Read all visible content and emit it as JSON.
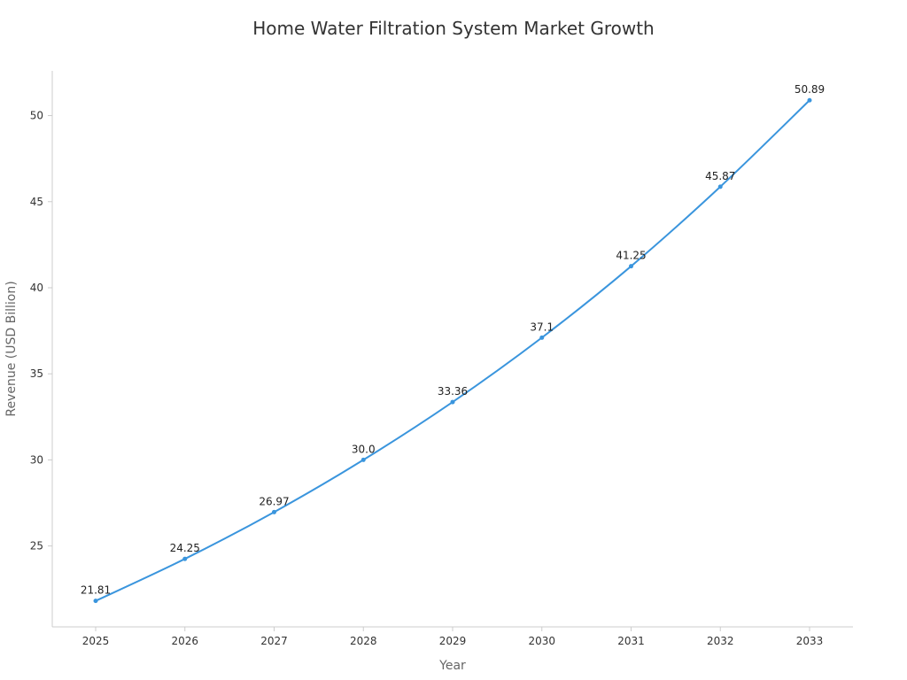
{
  "chart_data": {
    "type": "line",
    "title": "Home Water Filtration System Market Growth",
    "xlabel": "Year",
    "ylabel": "Revenue (USD Billion)",
    "x": [
      "2025",
      "2026",
      "2027",
      "2028",
      "2029",
      "2030",
      "2031",
      "2032",
      "2033"
    ],
    "series": [
      {
        "values": [
          21.81,
          24.25,
          26.97,
          30.0,
          33.36,
          37.1,
          41.25,
          45.87,
          50.89
        ],
        "labels": [
          "21.81",
          "24.25",
          "26.97",
          "30.0",
          "33.36",
          "37.1",
          "41.25",
          "45.87",
          "50.89"
        ],
        "color": "#3a95dd"
      }
    ],
    "ylim": [
      20.3,
      52.6
    ],
    "yticks": [
      25,
      30,
      35,
      40,
      45,
      50
    ],
    "grid": false,
    "axis_color": "#cccccc"
  }
}
